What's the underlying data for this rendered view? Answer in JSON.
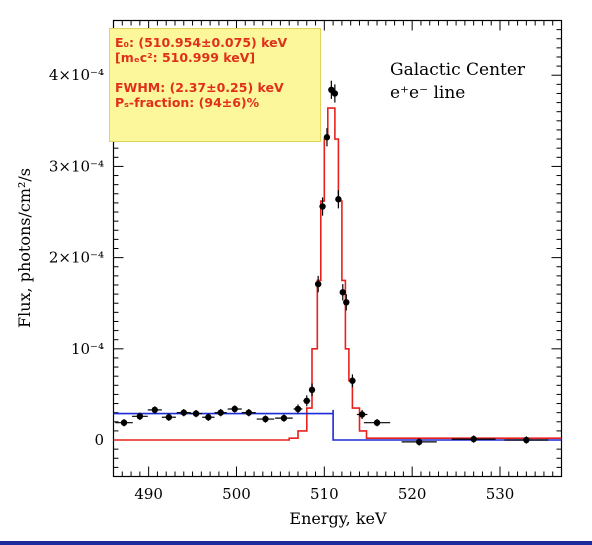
{
  "chart_data": {
    "type": "line",
    "xlabel": "Energy, keV",
    "ylabel": "Flux, photons/cm²/s",
    "xlim": [
      486,
      537
    ],
    "ylim": [
      -4e-05,
      0.00046
    ],
    "x_ticks": [
      490,
      500,
      510,
      520,
      530
    ],
    "x_tick_labels": [
      "490",
      "500",
      "510",
      "520",
      "530"
    ],
    "y_ticks": [
      0,
      0.0001,
      0.0002,
      0.0003,
      0.0004
    ],
    "y_tick_labels": [
      "0",
      "10⁻⁴",
      "2×10⁻⁴",
      "3×10⁻⁴",
      "4×10⁻⁴"
    ],
    "annotation": {
      "line1": "Galactic Center",
      "line2": "e⁺e⁻ line"
    },
    "info_box": {
      "e0": "E₀: (510.954±0.075) keV",
      "mec2": "[mₑc²: 510.999 keV]",
      "fwhm": "FWHM: (2.37±0.25) keV",
      "ps": "Pₛ-fraction: (94±6)%"
    },
    "colors": {
      "data": "#000000",
      "red_model": "#e8211c",
      "blue_model": "#1b2bd6",
      "box_fill": "#fbf79a",
      "box_text": "#e0301c"
    },
    "series": [
      {
        "kind": "points",
        "points": [
          {
            "x": 487.2,
            "y": 1.9e-05,
            "xerr": 1.0,
            "yerr": 4e-06
          },
          {
            "x": 489.0,
            "y": 2.6e-05,
            "xerr": 0.9,
            "yerr": 4e-06
          },
          {
            "x": 490.7,
            "y": 3.3e-05,
            "xerr": 0.8,
            "yerr": 4e-06
          },
          {
            "x": 492.3,
            "y": 2.5e-05,
            "xerr": 0.8,
            "yerr": 4e-06
          },
          {
            "x": 494.0,
            "y": 3e-05,
            "xerr": 0.8,
            "yerr": 4e-06
          },
          {
            "x": 495.4,
            "y": 2.9e-05,
            "xerr": 0.7,
            "yerr": 4e-06
          },
          {
            "x": 496.8,
            "y": 2.5e-05,
            "xerr": 0.7,
            "yerr": 4e-06
          },
          {
            "x": 498.2,
            "y": 3e-05,
            "xerr": 0.7,
            "yerr": 4e-06
          },
          {
            "x": 499.8,
            "y": 3.4e-05,
            "xerr": 0.8,
            "yerr": 4e-06
          },
          {
            "x": 501.4,
            "y": 3e-05,
            "xerr": 0.8,
            "yerr": 4e-06
          },
          {
            "x": 503.3,
            "y": 2.3e-05,
            "xerr": 1.0,
            "yerr": 4e-06
          },
          {
            "x": 505.4,
            "y": 2.4e-05,
            "xerr": 1.0,
            "yerr": 4e-06
          },
          {
            "x": 507.0,
            "y": 3.4e-05,
            "xerr": 0.5,
            "yerr": 5e-06
          },
          {
            "x": 508.0,
            "y": 4.3e-05,
            "xerr": 0.4,
            "yerr": 6e-06
          },
          {
            "x": 508.6,
            "y": 5.5e-05,
            "xerr": 0.3,
            "yerr": 7e-06
          },
          {
            "x": 509.3,
            "y": 0.000171,
            "xerr": 0.3,
            "yerr": 9e-06
          },
          {
            "x": 509.8,
            "y": 0.000256,
            "xerr": 0.3,
            "yerr": 1e-05
          },
          {
            "x": 510.3,
            "y": 0.000332,
            "xerr": 0.3,
            "yerr": 1e-05
          },
          {
            "x": 510.8,
            "y": 0.000384,
            "xerr": 0.3,
            "yerr": 1e-05
          },
          {
            "x": 511.2,
            "y": 0.00038,
            "xerr": 0.3,
            "yerr": 1e-05
          },
          {
            "x": 511.6,
            "y": 0.000264,
            "xerr": 0.3,
            "yerr": 1e-05
          },
          {
            "x": 512.1,
            "y": 0.000162,
            "xerr": 0.3,
            "yerr": 9e-06
          },
          {
            "x": 512.5,
            "y": 0.000151,
            "xerr": 0.3,
            "yerr": 9e-06
          },
          {
            "x": 513.2,
            "y": 6.5e-05,
            "xerr": 0.3,
            "yerr": 7e-06
          },
          {
            "x": 514.3,
            "y": 2.8e-05,
            "xerr": 0.6,
            "yerr": 5e-06
          },
          {
            "x": 516.0,
            "y": 1.9e-05,
            "xerr": 1.5,
            "yerr": 4e-06
          },
          {
            "x": 520.8,
            "y": -2e-06,
            "xerr": 2.0,
            "yerr": 4e-06
          },
          {
            "x": 527.0,
            "y": 1e-06,
            "xerr": 2.5,
            "yerr": 4e-06
          },
          {
            "x": 533.0,
            "y": 0.0,
            "xerr": 2.5,
            "yerr": 4e-06
          }
        ]
      },
      {
        "kind": "step",
        "color": "red",
        "x": [
          486,
          506.0,
          507.0,
          508.0,
          508.6,
          509.2,
          509.6,
          510.0,
          510.4,
          510.8,
          511.2,
          511.6,
          512.0,
          512.4,
          512.8,
          513.2,
          514.0,
          514.8,
          537
        ],
        "y": [
          0,
          2e-06,
          1e-05,
          3.5e-05,
          0.0001,
          0.000175,
          0.000262,
          0.00033,
          0.000364,
          0.000364,
          0.00033,
          0.000262,
          0.000175,
          0.0001,
          6.5e-05,
          3.5e-05,
          1e-05,
          2e-06,
          2e-06
        ]
      },
      {
        "kind": "step",
        "color": "blue",
        "x": [
          486,
          511.0,
          511.0,
          537
        ],
        "y": [
          2.9e-05,
          3.3e-05,
          0.0,
          0.0
        ]
      }
    ]
  }
}
